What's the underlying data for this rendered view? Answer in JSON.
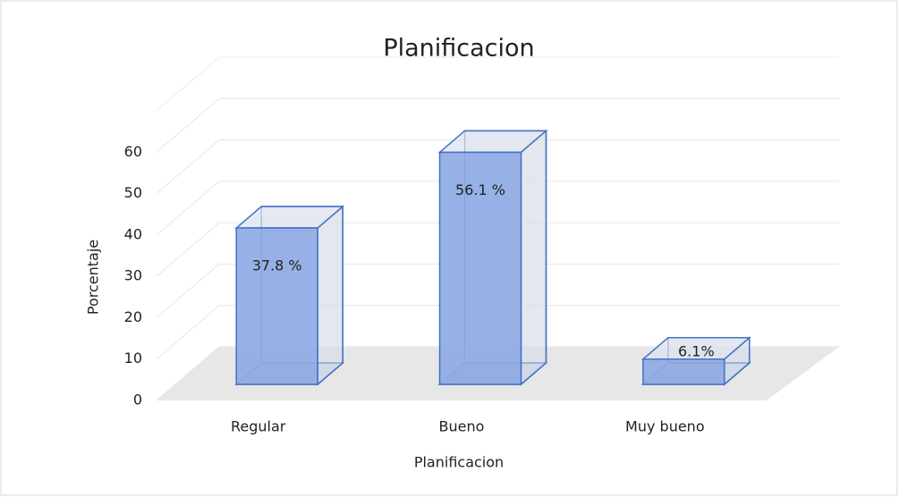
{
  "chart_data": {
    "type": "bar3d",
    "title": "Planificacion",
    "x_label": "Planificacion",
    "y_label": "Porcentaje",
    "categories": [
      "Regular",
      "Bueno",
      "Muy bueno"
    ],
    "values": [
      37.8,
      56.1,
      6.1
    ],
    "value_labels": [
      "37.8 %",
      "56.1 %",
      "6.1%"
    ],
    "color": "#4472c4",
    "ylim": [
      0,
      70
    ],
    "yticks": [
      0,
      10,
      20,
      30,
      40,
      50,
      60
    ],
    "grid": true
  }
}
